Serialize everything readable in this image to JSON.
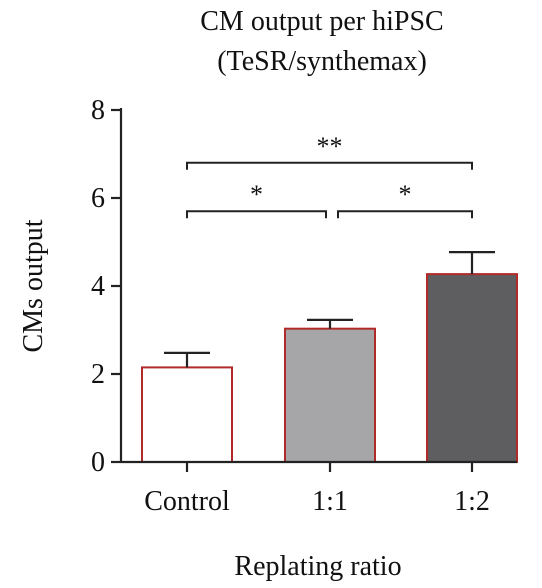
{
  "chart_data": {
    "type": "bar",
    "title_lines": [
      "CM output per hiPSC",
      "(TeSR/synthemax)"
    ],
    "xlabel": "Replating ratio",
    "ylabel": "CMs output",
    "categories": [
      "Control",
      "1:1",
      "1:2"
    ],
    "values": [
      2.15,
      3.03,
      4.27
    ],
    "errors": [
      0.33,
      0.2,
      0.5
    ],
    "bar_colors": [
      "#ffffff",
      "#a6a6a8",
      "#5e5e60"
    ],
    "bar_edge_color": "#b02a2a",
    "ylim": [
      0,
      8
    ],
    "yticks": [
      0,
      2,
      4,
      6,
      8
    ],
    "significance": [
      {
        "from": 0,
        "to": 1,
        "label": "*",
        "y": 5.7
      },
      {
        "from": 1,
        "to": 2,
        "label": "*",
        "y": 5.7
      },
      {
        "from": 0,
        "to": 2,
        "label": "**",
        "y": 6.8
      }
    ]
  }
}
